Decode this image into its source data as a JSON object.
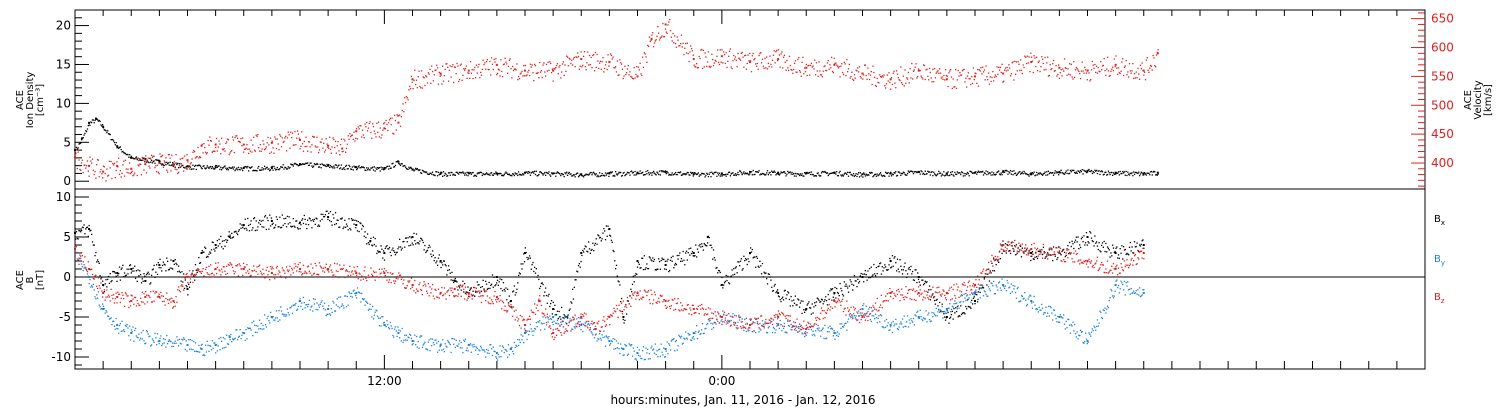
{
  "colors": {
    "black": "#000000",
    "red": "#e02020",
    "blue": "#1e82dc",
    "frame": "#000000"
  },
  "x_axis": {
    "title": "hours:minutes, Jan. 11, 2016 - Jan. 12, 2016",
    "range_hours": [
      0,
      48
    ],
    "major_ticks": [
      {
        "hours": 11,
        "label": "12:00"
      },
      {
        "hours": 23,
        "label": "0:00"
      }
    ]
  },
  "chart_data": [
    {
      "type": "scatter",
      "panel": "top",
      "y_left": {
        "label_lines": [
          "ACE",
          "Ion Density",
          "[cm⁻³]"
        ],
        "ylim": [
          -1,
          22
        ],
        "ticks": [
          0,
          5,
          10,
          15,
          20
        ]
      },
      "y_right": {
        "label_lines": [
          "ACE",
          "Velocity",
          "[km/s]"
        ],
        "ylim": [
          355,
          665
        ],
        "ticks": [
          400,
          450,
          500,
          550,
          600,
          650
        ]
      },
      "series": [
        {
          "color": "black",
          "axis": "left",
          "quantity": "Ion Density",
          "x": [
            0,
            0.25,
            0.5,
            0.75,
            1,
            1.5,
            2,
            2.5,
            3,
            3.5,
            4,
            5,
            6,
            7,
            8,
            9,
            10,
            11,
            11.5,
            12,
            13,
            14,
            15,
            16,
            17,
            18,
            19,
            20,
            21,
            22,
            23,
            24,
            25,
            26,
            27,
            28,
            29,
            30,
            31,
            32,
            33,
            34,
            35,
            36,
            37,
            38,
            38.5
          ],
          "y": [
            4,
            5.5,
            7.5,
            8,
            7,
            4.5,
            3,
            2.8,
            2.5,
            2.2,
            1.9,
            1.8,
            1.7,
            1.7,
            2.2,
            2.0,
            1.8,
            1.6,
            2.5,
            1.5,
            1.0,
            1.0,
            1.0,
            1.1,
            1.0,
            0.9,
            1.0,
            1.1,
            1.2,
            0.9,
            1.0,
            1.2,
            1.1,
            1.0,
            1.1,
            0.9,
            1.0,
            1.2,
            1.0,
            1.1,
            1.2,
            1.0,
            1.2,
            1.3,
            1.1,
            1.0,
            1.1
          ]
        },
        {
          "color": "red",
          "axis": "right",
          "quantity": "Velocity",
          "x": [
            0,
            0.5,
            1,
            1.5,
            2,
            2.5,
            3,
            3.5,
            4,
            4.5,
            5,
            6,
            7,
            8,
            9,
            9.5,
            10,
            11,
            11.5,
            12,
            13,
            14,
            15,
            16,
            17,
            18,
            19,
            20,
            20.5,
            21,
            22,
            23,
            24,
            25,
            26,
            27,
            28,
            29,
            30,
            31,
            32,
            33,
            34,
            35,
            36,
            37,
            38,
            38.5
          ],
          "y": [
            410,
            395,
            385,
            395,
            390,
            398,
            400,
            398,
            405,
            430,
            432,
            432,
            435,
            440,
            430,
            425,
            455,
            460,
            470,
            545,
            555,
            560,
            570,
            560,
            560,
            580,
            575,
            550,
            615,
            640,
            580,
            585,
            575,
            580,
            565,
            570,
            555,
            545,
            560,
            545,
            550,
            555,
            575,
            565,
            560,
            570,
            560,
            590
          ]
        }
      ]
    },
    {
      "type": "scatter",
      "panel": "bottom",
      "y_left": {
        "label_lines": [
          "ACE",
          "B",
          "[nT]"
        ],
        "ylim": [
          -11.5,
          11
        ],
        "ticks": [
          -10,
          -5,
          0,
          5,
          10
        ]
      },
      "zero_line": true,
      "legend": [
        {
          "label": "B",
          "sub": "x",
          "color": "black"
        },
        {
          "label": "B",
          "sub": "y",
          "color": "blue"
        },
        {
          "label": "B",
          "sub": "z",
          "color": "red"
        }
      ],
      "series": [
        {
          "color": "black",
          "component": "x",
          "x": [
            0,
            0.5,
            1,
            1.5,
            2,
            2.5,
            3,
            3.5,
            4,
            4.5,
            5,
            5.5,
            6,
            7,
            8,
            9,
            10,
            10.5,
            11,
            12,
            13,
            13.5,
            14,
            15,
            15.5,
            16,
            17,
            17.5,
            18,
            19,
            19.5,
            20,
            21,
            22,
            22.5,
            23,
            24,
            25,
            26,
            27,
            28,
            29,
            30,
            31,
            32,
            33,
            34,
            35,
            36,
            37,
            38
          ],
          "y": [
            5.5,
            6,
            -1,
            0.5,
            1,
            -0.5,
            1.5,
            2,
            -1.5,
            3,
            4,
            5,
            6.5,
            7,
            6.8,
            7.5,
            6.5,
            4.5,
            3,
            5,
            2,
            -0.5,
            -2,
            0,
            -3,
            3,
            -4,
            -5,
            3,
            6,
            -5,
            2,
            1.5,
            3,
            5,
            -1,
            3,
            -2,
            -4,
            -2,
            0,
            2,
            0,
            -5,
            -3,
            4,
            3,
            3,
            5,
            3,
            4
          ]
        },
        {
          "color": "blue",
          "component": "y",
          "x": [
            0,
            0.5,
            1,
            1.5,
            2,
            3,
            4,
            4.5,
            5,
            5.5,
            6,
            7,
            8,
            9,
            10,
            11,
            11.5,
            12,
            13,
            14,
            15,
            15.5,
            16,
            17,
            18,
            19,
            19.5,
            20,
            21,
            22,
            23,
            24,
            25,
            26,
            27,
            28,
            29,
            30,
            31,
            32,
            33,
            34,
            35,
            36,
            37,
            38
          ],
          "y": [
            3,
            0,
            -4,
            -6,
            -7,
            -8,
            -8.5,
            -9,
            -8.5,
            -7.5,
            -7,
            -5,
            -3,
            -4,
            -2,
            -6,
            -7,
            -8,
            -8.5,
            -8.5,
            -9.5,
            -9,
            -7,
            -5,
            -6,
            -8,
            -9,
            -9.5,
            -9,
            -7,
            -5,
            -6,
            -6,
            -6.5,
            -7,
            -4,
            -6,
            -5,
            -4,
            -2,
            -1,
            -3,
            -5,
            -8,
            -1,
            -2
          ]
        },
        {
          "color": "red",
          "component": "z",
          "x": [
            0,
            0.5,
            1,
            1.5,
            2,
            2.5,
            3,
            3.5,
            4,
            5,
            6,
            7,
            8,
            9,
            10,
            11,
            12,
            13,
            13.5,
            14,
            15,
            16,
            16.5,
            17,
            18,
            18.5,
            19,
            20,
            21,
            22,
            23,
            24,
            25,
            26,
            27,
            28,
            29,
            30,
            31,
            32,
            33,
            34,
            35,
            36,
            37,
            38
          ],
          "y": [
            3.5,
            1,
            -2,
            -2.5,
            -3,
            -2.5,
            -2.5,
            -3,
            0,
            1,
            1,
            0.5,
            1,
            1,
            0.5,
            0.5,
            -1,
            -2,
            -1.5,
            -2,
            -2.5,
            -6,
            -3,
            -7,
            -5,
            -6.5,
            -5,
            -2,
            -3,
            -4,
            -5,
            -6,
            -5,
            -6.5,
            -3,
            -5,
            -2,
            -2,
            -2,
            -1,
            4,
            3.5,
            3,
            2,
            1,
            3
          ]
        }
      ]
    }
  ]
}
